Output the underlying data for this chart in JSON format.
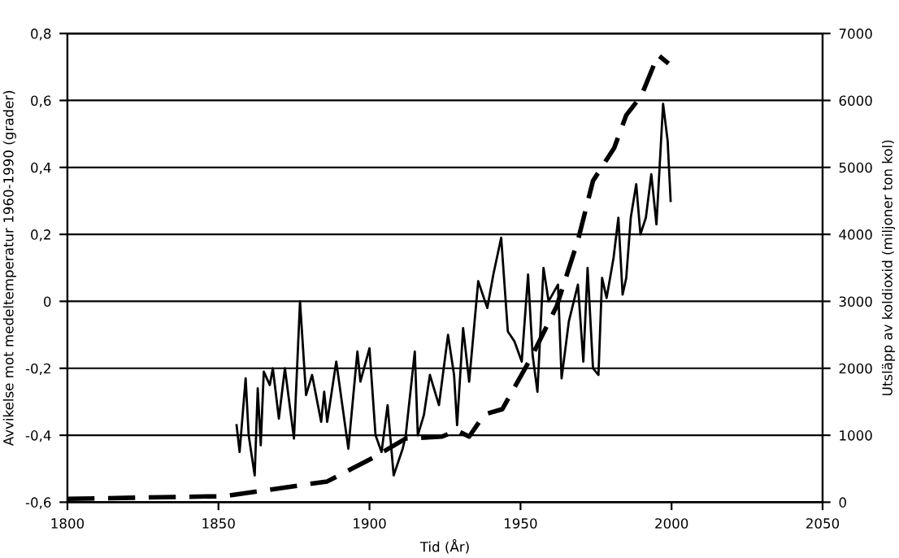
{
  "chart_data": {
    "type": "line",
    "xlabel": "Tid (År)",
    "ylabel": "Avvikelse mot medeltemperatur 1960-1990 (grader)",
    "y2label": "Utsläpp av koldioxid (miljoner ton kol)",
    "xlim": [
      1800,
      2050
    ],
    "xticks": [
      1800,
      1850,
      1900,
      1950,
      2000,
      2050
    ],
    "ylim": [
      -0.6,
      0.8
    ],
    "yticks": [
      {
        "value": -0.6,
        "label": "-0,6"
      },
      {
        "value": -0.4,
        "label": "-0,4"
      },
      {
        "value": -0.2,
        "label": "-0,2"
      },
      {
        "value": 0,
        "label": "0"
      },
      {
        "value": 0.2,
        "label": "0,2"
      },
      {
        "value": 0.4,
        "label": "0,4"
      },
      {
        "value": 0.6,
        "label": "0,6"
      },
      {
        "value": 0.8,
        "label": "0,8"
      }
    ],
    "y2lim": [
      0,
      7000
    ],
    "y2ticks": [
      0,
      1000,
      2000,
      3000,
      4000,
      5000,
      6000,
      7000
    ],
    "grid": "y",
    "legend": false,
    "series": [
      {
        "color": "#000000",
        "line_style": "solid",
        "x": [
          1856,
          1857,
          1859,
          1860,
          1862,
          1863,
          1864,
          1865,
          1867,
          1868,
          1870,
          1872,
          1875,
          1877,
          1879,
          1881,
          1884,
          1885,
          1886,
          1889,
          1893,
          1896,
          1897,
          1900,
          1902,
          1904,
          1906,
          1908,
          1911,
          1912,
          1915,
          1916,
          1918,
          1920,
          1923,
          1926,
          1928,
          1929,
          1931,
          1933,
          1936,
          1939,
          1941,
          1943.6,
          1945.8,
          1948,
          1950.4,
          1952.5,
          1954,
          1955.6,
          1957.6,
          1959.3,
          1962.4,
          1963.6,
          1966,
          1969,
          1970.8,
          1972.2,
          1974,
          1975.8,
          1977,
          1978.5,
          1980.8,
          1982.4,
          1983.8,
          1985,
          1986.5,
          1988.3,
          1989.7,
          1991.5,
          1993.3,
          1995,
          1997.2,
          1998.7,
          1999.7
        ],
        "values": [
          -0.37,
          -0.45,
          -0.23,
          -0.4,
          -0.52,
          -0.26,
          -0.43,
          -0.21,
          -0.25,
          -0.2,
          -0.35,
          -0.2,
          -0.41,
          0.0,
          -0.28,
          -0.22,
          -0.36,
          -0.27,
          -0.36,
          -0.18,
          -0.44,
          -0.15,
          -0.24,
          -0.14,
          -0.4,
          -0.45,
          -0.31,
          -0.52,
          -0.44,
          -0.4,
          -0.15,
          -0.4,
          -0.34,
          -0.22,
          -0.31,
          -0.1,
          -0.22,
          -0.37,
          -0.08,
          -0.24,
          0.06,
          -0.02,
          0.08,
          0.19,
          -0.09,
          -0.12,
          -0.18,
          0.08,
          -0.16,
          -0.27,
          0.1,
          0.0,
          0.05,
          -0.23,
          -0.06,
          0.05,
          -0.18,
          0.1,
          -0.2,
          -0.22,
          0.07,
          0.01,
          0.13,
          0.25,
          0.02,
          0.07,
          0.25,
          0.35,
          0.2,
          0.25,
          0.38,
          0.23,
          0.59,
          0.48,
          0.3
        ]
      },
      {
        "color": "#000000",
        "line_style": "dashed",
        "axis": "y2",
        "x": [
          1800,
          1852,
          1886,
          1901,
          1912,
          1924,
          1929,
          1933,
          1938,
          1944,
          1954,
          1962,
          1969,
          1974,
          1981,
          1985,
          1990,
          1995.5,
          1999
        ],
        "values": [
          50,
          90,
          310,
          660,
          950,
          980,
          1070,
          980,
          1310,
          1390,
          2200,
          2930,
          3910,
          4800,
          5290,
          5780,
          6070,
          6680,
          6550
        ]
      }
    ]
  }
}
